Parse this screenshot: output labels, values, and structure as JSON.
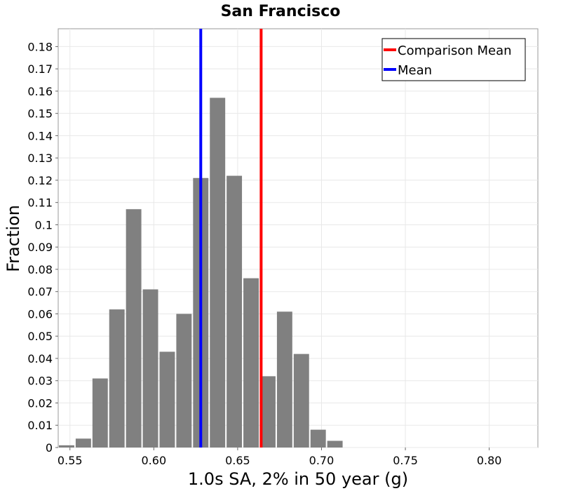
{
  "chart_data": {
    "type": "bar",
    "title": "San Francisco",
    "xlabel": "1.0s SA, 2% in 50 year (g)",
    "ylabel": "Fraction",
    "xlim": [
      0.543,
      0.829
    ],
    "ylim": [
      0,
      0.188
    ],
    "grid": true,
    "legend_position": "top-right",
    "x_ticks": [
      0.55,
      0.6,
      0.65,
      0.7,
      0.75,
      0.8
    ],
    "x_tick_labels": [
      "0.55",
      "0.60",
      "0.65",
      "0.70",
      "0.75",
      "0.80"
    ],
    "y_ticks": [
      0,
      0.01,
      0.02,
      0.03,
      0.04,
      0.05,
      0.06,
      0.07,
      0.08,
      0.09,
      0.1,
      0.11,
      0.12,
      0.13,
      0.14,
      0.15,
      0.16,
      0.17,
      0.18
    ],
    "y_tick_labels": [
      "0",
      "0.01",
      "0.02",
      "0.03",
      "0.04",
      "0.05",
      "0.06",
      "0.07",
      "0.08",
      "0.09",
      "0.1",
      "0.11",
      "0.12",
      "0.13",
      "0.14",
      "0.15",
      "0.16",
      "0.17",
      "0.18"
    ],
    "bin_width": 0.01,
    "bins": [
      {
        "x": 0.548,
        "value": 0.001
      },
      {
        "x": 0.558,
        "value": 0.004
      },
      {
        "x": 0.568,
        "value": 0.031
      },
      {
        "x": 0.578,
        "value": 0.062
      },
      {
        "x": 0.588,
        "value": 0.107
      },
      {
        "x": 0.598,
        "value": 0.071
      },
      {
        "x": 0.608,
        "value": 0.043
      },
      {
        "x": 0.618,
        "value": 0.06
      },
      {
        "x": 0.628,
        "value": 0.121
      },
      {
        "x": 0.638,
        "value": 0.157
      },
      {
        "x": 0.648,
        "value": 0.122
      },
      {
        "x": 0.658,
        "value": 0.076
      },
      {
        "x": 0.668,
        "value": 0.032
      },
      {
        "x": 0.678,
        "value": 0.061
      },
      {
        "x": 0.688,
        "value": 0.042
      },
      {
        "x": 0.698,
        "value": 0.008
      },
      {
        "x": 0.708,
        "value": 0.003
      }
    ],
    "bar_color": "#808080",
    "vertical_lines": [
      {
        "name": "Comparison Mean",
        "x": 0.664,
        "color": "#ff0000"
      },
      {
        "name": "Mean",
        "x": 0.628,
        "color": "#0000ff"
      }
    ]
  }
}
